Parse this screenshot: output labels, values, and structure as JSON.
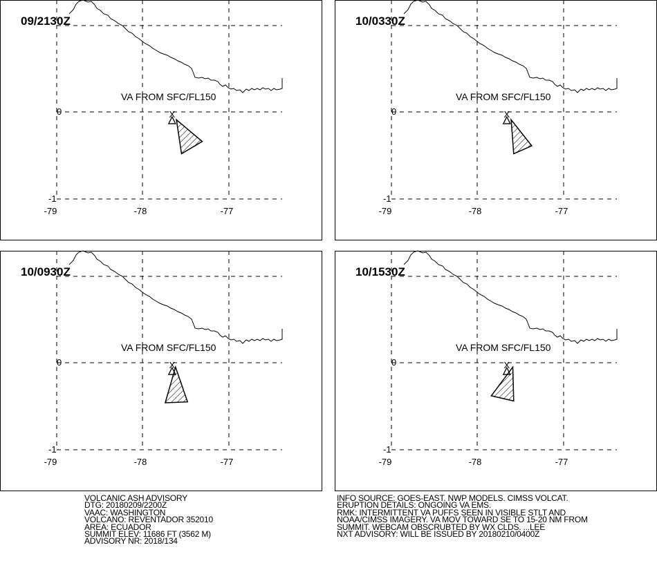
{
  "panels": [
    {
      "time": "09/2130Z",
      "label": "VA FROM SFC/FL150",
      "lon_ticks": [
        "-79",
        "-78",
        "-77"
      ],
      "lat_ticks": [
        "0",
        "-1"
      ],
      "plume": [
        [
          -77.61,
          -0.09
        ],
        [
          -77.31,
          -0.34
        ],
        [
          -77.55,
          -0.48
        ]
      ]
    },
    {
      "time": "10/0330Z",
      "label": "VA FROM SFC/FL150",
      "lon_ticks": [
        "-79",
        "-78",
        "-77"
      ],
      "lat_ticks": [
        "0",
        "-1"
      ],
      "plume": [
        [
          -77.61,
          -0.09
        ],
        [
          -77.37,
          -0.39
        ],
        [
          -77.58,
          -0.48
        ]
      ]
    },
    {
      "time": "10/0930Z",
      "label": "VA FROM SFC/FL150",
      "lon_ticks": [
        "-79",
        "-78",
        "-77"
      ],
      "lat_ticks": [
        "0",
        "-1"
      ],
      "plume": [
        [
          -77.62,
          -0.05
        ],
        [
          -77.48,
          -0.45
        ],
        [
          -77.74,
          -0.46
        ]
      ]
    },
    {
      "time": "10/1530Z",
      "label": "VA FROM SFC/FL150",
      "lon_ticks": [
        "-79",
        "-78",
        "-77"
      ],
      "lat_ticks": [
        "0",
        "-1"
      ],
      "plume": [
        [
          -77.59,
          -0.05
        ],
        [
          -77.58,
          -0.44
        ],
        [
          -77.84,
          -0.38
        ]
      ]
    }
  ],
  "volcano_marker": "X",
  "advisory_left": [
    "VOLCANIC ASH ADVISORY",
    "DTG: 20180209/2200Z",
    "VAAC: WASHINGTON",
    "VOLCANO: REVENTADOR 352010",
    "AREA: ECUADOR",
    "SUMMIT ELEV: 11686 FT (3562 M)",
    "ADVISORY NR: 2018/134"
  ],
  "advisory_right": [
    "INFO SOURCE: GOES-EAST. NWP MODELS. CIMSS VOLCAT.",
    "ERUPTION DETAILS: ONGOING VA EMS.",
    "RMK: INTERMITTENT VA PUFFS SEEN IN VISIBLE STLT AND",
    "NOAA/CIMSS IMAGERY. VA MOV TOWARD SE TO 15-20 NM FROM",
    "SUMMIT. WEBCAM OBSCRUBTED BY WX CLDS. ...LEE",
    "NXT ADVISORY: WILL BE ISSUED BY 20180210/0400Z"
  ]
}
